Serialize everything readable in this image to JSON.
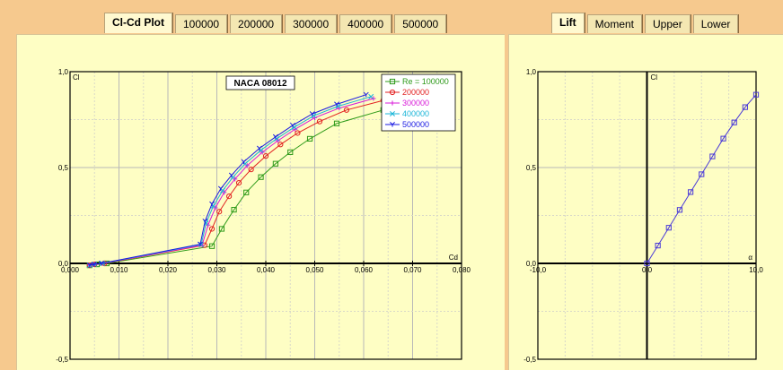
{
  "left_tabs": [
    "Cl-Cd Plot",
    "100000",
    "200000",
    "300000",
    "400000",
    "500000"
  ],
  "left_active_tab": 0,
  "right_tabs": [
    "Lift",
    "Moment",
    "Upper",
    "Lower"
  ],
  "right_active_tab": 0,
  "chart_data": [
    {
      "type": "line",
      "title": "NACA 08012",
      "xlabel": "Cd",
      "ylabel": "Cl",
      "xlim": [
        0.0,
        0.08
      ],
      "ylim": [
        -0.5,
        1.0
      ],
      "x_ticks": [
        "0,000",
        "0,010",
        "0,020",
        "0,030",
        "0,040",
        "0,050",
        "0,060",
        "0,070",
        "0,080"
      ],
      "y_ticks": [
        "1,0",
        "0,5",
        "0,0",
        "-0,5"
      ],
      "grid": true,
      "legend_position": "top-right",
      "series": [
        {
          "name": "Re = 100000",
          "color": "#2e9a1a",
          "marker": "square",
          "x": [
            0.004,
            0.0055,
            0.0075,
            0.029,
            0.031,
            0.0335,
            0.036,
            0.039,
            0.042,
            0.045,
            0.049,
            0.0545,
            0.064
          ],
          "y": [
            -0.01,
            -0.005,
            0.0,
            0.09,
            0.18,
            0.28,
            0.37,
            0.45,
            0.52,
            0.58,
            0.65,
            0.73,
            0.8
          ]
        },
        {
          "name": "200000",
          "color": "#e21f1f",
          "marker": "circle",
          "x": [
            0.004,
            0.005,
            0.007,
            0.0275,
            0.029,
            0.0305,
            0.0325,
            0.0345,
            0.037,
            0.04,
            0.043,
            0.0465,
            0.051,
            0.0565,
            0.064
          ],
          "y": [
            -0.01,
            -0.005,
            0.0,
            0.095,
            0.18,
            0.27,
            0.35,
            0.42,
            0.49,
            0.56,
            0.62,
            0.68,
            0.74,
            0.8,
            0.85
          ]
        },
        {
          "name": "300000",
          "color": "#d81ad8",
          "marker": "plus",
          "x": [
            0.004,
            0.005,
            0.0068,
            0.027,
            0.0282,
            0.0297,
            0.0315,
            0.0337,
            0.0362,
            0.0393,
            0.0425,
            0.046,
            0.05,
            0.055,
            0.062
          ],
          "y": [
            -0.01,
            -0.005,
            0.0,
            0.095,
            0.2,
            0.29,
            0.37,
            0.44,
            0.51,
            0.58,
            0.64,
            0.7,
            0.76,
            0.81,
            0.86
          ]
        },
        {
          "name": "400000",
          "color": "#1ab5d8",
          "marker": "x",
          "x": [
            0.004,
            0.005,
            0.0066,
            0.0268,
            0.0278,
            0.0293,
            0.0312,
            0.0333,
            0.0358,
            0.039,
            0.0422,
            0.0458,
            0.0498,
            0.0548,
            0.0615
          ],
          "y": [
            -0.01,
            -0.005,
            0.0,
            0.098,
            0.21,
            0.3,
            0.38,
            0.45,
            0.52,
            0.59,
            0.65,
            0.71,
            0.77,
            0.82,
            0.87
          ]
        },
        {
          "name": "500000",
          "color": "#1a1ae2",
          "marker": "tri",
          "x": [
            0.004,
            0.0049,
            0.0064,
            0.0266,
            0.0276,
            0.029,
            0.0308,
            0.033,
            0.0355,
            0.0387,
            0.042,
            0.0455,
            0.0495,
            0.0545,
            0.0605
          ],
          "y": [
            -0.01,
            -0.005,
            0.0,
            0.1,
            0.22,
            0.31,
            0.39,
            0.46,
            0.53,
            0.6,
            0.66,
            0.72,
            0.78,
            0.83,
            0.88
          ]
        }
      ]
    },
    {
      "type": "line",
      "title": "",
      "xlabel": "α",
      "ylabel": "Cl",
      "xlim": [
        -10.0,
        10.0
      ],
      "ylim": [
        -0.5,
        1.0
      ],
      "x_ticks": [
        "-10,0",
        "0,0",
        "10,0"
      ],
      "y_ticks": [
        "1,0",
        "0,5",
        "0,0",
        "-0,5"
      ],
      "grid": true,
      "series": [
        {
          "name": "",
          "color": "#4a3ad8",
          "marker": "square",
          "x": [
            0,
            1,
            2,
            3,
            4,
            5,
            6,
            7,
            8,
            9,
            10
          ],
          "y": [
            0.0,
            0.093,
            0.186,
            0.279,
            0.372,
            0.465,
            0.558,
            0.651,
            0.735,
            0.815,
            0.88
          ]
        }
      ]
    }
  ]
}
